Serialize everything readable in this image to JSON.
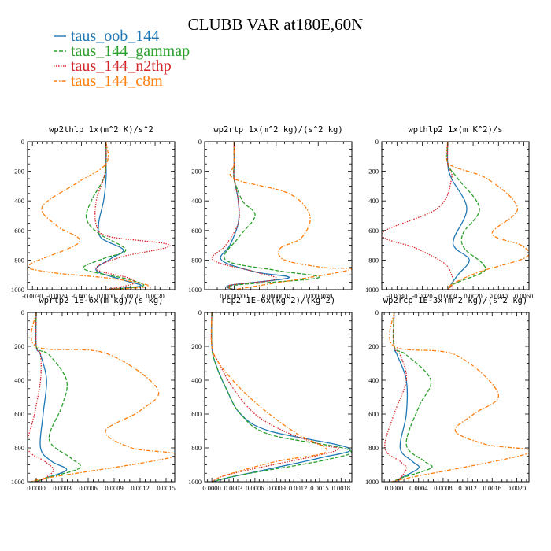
{
  "figure": {
    "title": "CLUBB VAR at180E,60N",
    "legend": [
      {
        "label": "taus_oob_144",
        "color": "#1f77b4",
        "dash": "solid"
      },
      {
        "label": "taus_144_gammap",
        "color": "#2ca02c",
        "dash": "dash"
      },
      {
        "label": "taus_144_n2thp",
        "color": "#d62728",
        "dash": "dot"
      },
      {
        "label": "taus_144_c8m",
        "color": "#ff7f0e",
        "dash": "dashdot"
      }
    ]
  },
  "chart_data": [
    {
      "type": "line",
      "title": "wp2thlp  1x(m^2 K)/s^2",
      "xlim": [
        -0.0032,
        0.0028
      ],
      "ylim": [
        1000,
        0
      ],
      "xticks": [
        -0.003,
        -0.002,
        -0.001,
        0.0,
        0.001,
        0.002
      ],
      "xticklabels": [
        "-0.0030",
        "-0.0020",
        "-0.0010",
        "0.0000",
        "0.0010",
        "0.0020"
      ],
      "yticks": [
        0,
        200,
        400,
        600,
        800,
        1000
      ],
      "yticklabels": [
        "0",
        "200",
        "400",
        "600",
        "800",
        "1000"
      ],
      "series": [
        {
          "name": "taus_oob_144",
          "x": [
            0,
            0,
            0,
            -0.0001,
            -0.0003,
            -0.0002,
            0.0007,
            0.0002,
            -0.0004,
            0.0008,
            0.0014,
            0
          ],
          "y": [
            0,
            150,
            250,
            400,
            550,
            650,
            730,
            790,
            870,
            940,
            975,
            1000
          ]
        },
        {
          "name": "taus_144_gammap",
          "x": [
            0,
            0,
            -0.0001,
            -0.0006,
            -0.0008,
            -0.0003,
            0.0008,
            -0.0001,
            -0.0009,
            0.0009,
            0.0015,
            0
          ],
          "y": [
            0,
            150,
            250,
            400,
            520,
            620,
            730,
            790,
            860,
            930,
            975,
            1000
          ]
        },
        {
          "name": "taus_144_n2thp",
          "x": [
            0,
            0,
            -0.0001,
            -0.0004,
            -0.0004,
            0.0001,
            0.0026,
            0.0006,
            -0.0004,
            0.0009,
            0.0011,
            0
          ],
          "y": [
            0,
            150,
            250,
            400,
            560,
            640,
            700,
            780,
            860,
            920,
            960,
            1000
          ]
        },
        {
          "name": "taus_144_c8m",
          "x": [
            0,
            0,
            -0.0012,
            -0.0026,
            -0.002,
            -0.0011,
            -0.0031,
            -0.0024,
            0,
            0.0012,
            0.0017,
            0
          ],
          "y": [
            0,
            150,
            280,
            440,
            570,
            680,
            830,
            880,
            920,
            950,
            980,
            1000
          ]
        }
      ]
    },
    {
      "type": "line",
      "title": "wp2rtp  1x(m^2 kg)/(s^2 kg)",
      "xlim": [
        -7e-07,
        2.8e-06
      ],
      "ylim": [
        1000,
        0
      ],
      "xticks": [
        0,
        1e-06,
        2e-06
      ],
      "xticklabels": [
        "0.0000000",
        "0.0000010",
        "0.0000020"
      ],
      "yticks": [
        0,
        200,
        400,
        600,
        800,
        1000
      ],
      "yticklabels": [
        "0",
        "200",
        "400",
        "600",
        "800",
        "1000"
      ],
      "series": [
        {
          "name": "taus_oob_144",
          "x": [
            0,
            0,
            0,
            1e-07,
            1e-07,
            -1e-07,
            -3e-07,
            5e-07,
            1.3e-06,
            -1e-07,
            0
          ],
          "y": [
            0,
            150,
            250,
            400,
            550,
            700,
            800,
            880,
            920,
            970,
            1000
          ]
        },
        {
          "name": "taus_144_gammap",
          "x": [
            0,
            0,
            0,
            2e-07,
            5e-07,
            1e-07,
            -2e-07,
            1e-06,
            2e-06,
            0,
            0
          ],
          "y": [
            0,
            150,
            250,
            400,
            500,
            650,
            800,
            870,
            920,
            970,
            1000
          ]
        },
        {
          "name": "taus_144_n2thp",
          "x": [
            0,
            0,
            0,
            1e-07,
            1e-07,
            -2e-07,
            -5e-07,
            5e-07,
            1e-06,
            -1e-07,
            0
          ],
          "y": [
            0,
            150,
            250,
            400,
            550,
            700,
            800,
            880,
            930,
            970,
            1000
          ]
        },
        {
          "name": "taus_144_c8m",
          "x": [
            0,
            0,
            0,
            1.3e-06,
            1.8e-06,
            1.6e-06,
            1.1e-06,
            1.2e-06,
            2.1e-06,
            2.7e-06,
            0
          ],
          "y": [
            0,
            150,
            250,
            350,
            500,
            650,
            720,
            800,
            850,
            870,
            1000
          ]
        }
      ]
    },
    {
      "type": "line",
      "title": "wpthlp2  1x(m K^2)/s",
      "xlim": [
        -0.0052,
        0.0064
      ],
      "ylim": [
        1000,
        0
      ],
      "xticks": [
        -0.004,
        -0.002,
        0.0,
        0.002,
        0.004,
        0.006
      ],
      "xticklabels": [
        "-0.0040",
        "-0.0020",
        "0.0000",
        "0.0020",
        "0.0040",
        "0.0060"
      ],
      "yticks": [
        0,
        200,
        400,
        600,
        800,
        1000
      ],
      "yticklabels": [
        "0",
        "200",
        "400",
        "600",
        "800",
        "1000"
      ],
      "series": [
        {
          "name": "taus_oob_144",
          "x": [
            0,
            0,
            0.0003,
            0.0015,
            0.0005,
            0.0006,
            0.0017,
            0.0008,
            0.0003,
            0
          ],
          "y": [
            0,
            150,
            250,
            450,
            650,
            720,
            800,
            900,
            960,
            1000
          ]
        },
        {
          "name": "taus_144_gammap",
          "x": [
            0,
            0,
            0.0008,
            0.0025,
            0.0012,
            0.0013,
            0.0027,
            0.0028,
            0.0005,
            0
          ],
          "y": [
            0,
            150,
            250,
            450,
            620,
            720,
            820,
            880,
            960,
            1000
          ]
        },
        {
          "name": "taus_144_n2thp",
          "x": [
            0,
            0,
            0.0003,
            -0.0008,
            -0.0052,
            -0.0025,
            -0.0003,
            0.0003,
            0.0004,
            0
          ],
          "y": [
            0,
            150,
            250,
            450,
            620,
            720,
            820,
            900,
            960,
            1000
          ]
        },
        {
          "name": "taus_144_c8m",
          "x": [
            0,
            0.0001,
            0.0031,
            0.0055,
            0.0035,
            0.0058,
            0.0062,
            0.0025,
            0.0004,
            0
          ],
          "y": [
            0,
            150,
            250,
            450,
            620,
            700,
            780,
            880,
            960,
            1000
          ]
        }
      ]
    },
    {
      "type": "line",
      "title": "wprtp2  1E-6x(m kg)/(s kg)",
      "xlim": [
        -0.0001,
        0.0016
      ],
      "ylim": [
        1000,
        0
      ],
      "xticks": [
        0,
        0.0003,
        0.0006,
        0.0009,
        0.0012,
        0.0015
      ],
      "xticklabels": [
        "0.0000",
        "0.0003",
        "0.0006",
        "0.0009",
        "0.0012",
        "0.0015"
      ],
      "yticks": [
        0,
        200,
        400,
        600,
        800,
        1000
      ],
      "yticklabels": [
        "0",
        "200",
        "400",
        "600",
        "800",
        "1000"
      ],
      "series": [
        {
          "name": "taus_oob_144",
          "x": [
            0,
            0,
            5e-05,
            0.00012,
            8e-05,
            5e-05,
            0.00018,
            0.00035,
            0.0001,
            0
          ],
          "y": [
            0,
            200,
            250,
            400,
            600,
            800,
            880,
            930,
            980,
            1000
          ]
        },
        {
          "name": "taus_144_gammap",
          "x": [
            0,
            0,
            0.00015,
            0.00035,
            0.0003,
            0.00015,
            0.0004,
            0.0005,
            0.0001,
            0
          ],
          "y": [
            0,
            200,
            250,
            400,
            550,
            750,
            860,
            920,
            980,
            1000
          ]
        },
        {
          "name": "taus_144_n2thp",
          "x": [
            0,
            0,
            5e-05,
            5e-05,
            -2e-05,
            -0.0001,
            0.0001,
            0.0002,
            0.0001,
            0
          ],
          "y": [
            0,
            200,
            250,
            400,
            600,
            800,
            880,
            930,
            980,
            1000
          ]
        },
        {
          "name": "taus_144_c8m",
          "x": [
            0,
            0,
            0.0008,
            0.0014,
            0.0012,
            0.0008,
            0.0011,
            0.0016,
            0.0001,
            0
          ],
          "y": [
            0,
            200,
            240,
            450,
            580,
            700,
            800,
            850,
            980,
            1000
          ]
        }
      ]
    },
    {
      "type": "line",
      "title": "rcp2  1E-6x(kg^2)/(kg^2)",
      "xlim": [
        -0.0001,
        0.00195
      ],
      "ylim": [
        1000,
        0
      ],
      "xticks": [
        0,
        0.0003,
        0.0006,
        0.0009,
        0.0012,
        0.0015,
        0.0018
      ],
      "xticklabels": [
        "0.0000",
        "0.0003",
        "0.0006",
        "0.0009",
        "0.0012",
        "0.0015",
        "0.0018"
      ],
      "yticks": [
        0,
        200,
        400,
        600,
        800,
        1000
      ],
      "yticklabels": [
        "0",
        "200",
        "400",
        "600",
        "800",
        "1000"
      ],
      "series": [
        {
          "name": "taus_oob_144",
          "x": [
            0,
            0,
            5e-05,
            0.0002,
            0.0004,
            0.0008,
            0.0019,
            0.0015,
            0.0004,
            0
          ],
          "y": [
            0,
            200,
            300,
            450,
            600,
            700,
            800,
            860,
            960,
            1000
          ]
        },
        {
          "name": "taus_144_gammap",
          "x": [
            0,
            0,
            5e-05,
            0.0002,
            0.0004,
            0.0008,
            0.0019,
            0.0016,
            0.0004,
            0
          ],
          "y": [
            0,
            200,
            300,
            450,
            600,
            720,
            810,
            870,
            960,
            1000
          ]
        },
        {
          "name": "taus_144_n2thp",
          "x": [
            0,
            0,
            0.0001,
            0.0003,
            0.0006,
            0.001,
            0.0015,
            0.0017,
            0.0003,
            0
          ],
          "y": [
            0,
            200,
            300,
            450,
            600,
            700,
            780,
            820,
            950,
            1000
          ]
        },
        {
          "name": "taus_144_c8m",
          "x": [
            0,
            0,
            0.0001,
            0.0004,
            0.0008,
            0.0012,
            0.0016,
            0.0009,
            0.0002,
            0
          ],
          "y": [
            0,
            200,
            300,
            450,
            600,
            720,
            820,
            880,
            960,
            1000
          ]
        }
      ]
    },
    {
      "type": "line",
      "title": "wp2rcp  1E-3x(m^2 kg)/(s^2 kg)",
      "xlim": [
        -0.0002,
        0.0022
      ],
      "ylim": [
        1000,
        0
      ],
      "xticks": [
        0,
        0.0004,
        0.0008,
        0.0012,
        0.0016,
        0.002
      ],
      "xticklabels": [
        "0.0000",
        "0.0004",
        "0.0008",
        "0.0012",
        "0.0016",
        "0.0020"
      ],
      "yticks": [
        0,
        200,
        400,
        600,
        800,
        1000
      ],
      "yticklabels": [
        "0",
        "200",
        "400",
        "600",
        "800",
        "1000"
      ],
      "series": [
        {
          "name": "taus_oob_144",
          "x": [
            0,
            0,
            5e-05,
            0.0002,
            0.0002,
            0.0001,
            0.0003,
            0.0004,
            0.0001,
            0
          ],
          "y": [
            0,
            200,
            250,
            400,
            600,
            800,
            880,
            920,
            980,
            1000
          ]
        },
        {
          "name": "taus_144_gammap",
          "x": [
            0,
            0,
            0.0002,
            0.0006,
            0.0004,
            0.0002,
            0.0005,
            0.0006,
            0.0001,
            0
          ],
          "y": [
            0,
            200,
            250,
            400,
            560,
            780,
            880,
            920,
            980,
            1000
          ]
        },
        {
          "name": "taus_144_n2thp",
          "x": [
            0,
            0,
            0.0001,
            0.0002,
            0,
            -0.00015,
            0.0001,
            0.0002,
            0.0001,
            0
          ],
          "y": [
            0,
            200,
            250,
            400,
            600,
            800,
            880,
            920,
            980,
            1000
          ]
        },
        {
          "name": "taus_144_c8m",
          "x": [
            0,
            0,
            0.001,
            0.0017,
            0.0013,
            0.001,
            0.0015,
            0.0022,
            0.0002,
            0
          ],
          "y": [
            0,
            200,
            250,
            480,
            600,
            700,
            780,
            830,
            980,
            1000
          ]
        }
      ]
    }
  ]
}
